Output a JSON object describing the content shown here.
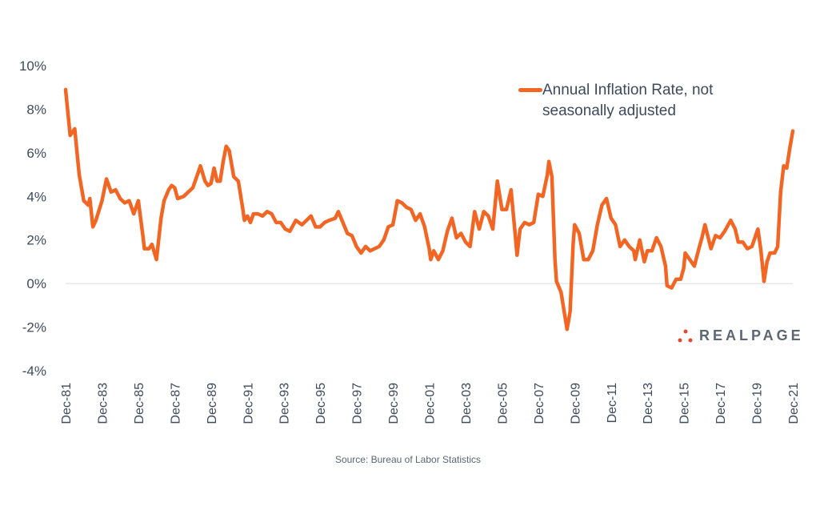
{
  "chart_data": {
    "type": "line",
    "title": "",
    "xlabel": "",
    "ylabel": "",
    "ylim": [
      -4,
      10
    ],
    "yticks": [
      "10%",
      "8%",
      "6%",
      "4%",
      "2%",
      "0%",
      "-2%",
      "-4%"
    ],
    "ytick_values": [
      10,
      8,
      6,
      4,
      2,
      0,
      -2,
      -4
    ],
    "xlim": [
      "1981-12",
      "2021-12"
    ],
    "xticks": [
      "Dec-81",
      "Dec-83",
      "Dec-85",
      "Dec-87",
      "Dec-89",
      "Dec-91",
      "Dec-93",
      "Dec-95",
      "Dec-97",
      "Dec-99",
      "Dec-01",
      "Dec-03",
      "Dec-05",
      "Dec-07",
      "Dec-09",
      "Dec-11",
      "Dec-13",
      "Dec-15",
      "Dec-17",
      "Dec-19",
      "Dec-21"
    ],
    "grid": "zero line only",
    "legend_position": "top-right",
    "series": [
      {
        "name": "Annual Inflation Rate, not seasonally adjusted",
        "color": "#f26522",
        "points": [
          [
            "1981-12",
            8.9
          ],
          [
            "1982-03",
            6.8
          ],
          [
            "1982-06",
            7.1
          ],
          [
            "1982-09",
            5.0
          ],
          [
            "1982-12",
            3.8
          ],
          [
            "1983-03",
            3.6
          ],
          [
            "1983-04",
            3.9
          ],
          [
            "1983-06",
            2.6
          ],
          [
            "1983-08",
            2.9
          ],
          [
            "1983-12",
            3.8
          ],
          [
            "1984-03",
            4.8
          ],
          [
            "1984-06",
            4.2
          ],
          [
            "1984-09",
            4.3
          ],
          [
            "1984-12",
            3.9
          ],
          [
            "1985-03",
            3.7
          ],
          [
            "1985-06",
            3.8
          ],
          [
            "1985-09",
            3.2
          ],
          [
            "1985-12",
            3.8
          ],
          [
            "1986-03",
            2.2
          ],
          [
            "1986-04",
            1.6
          ],
          [
            "1986-07",
            1.6
          ],
          [
            "1986-09",
            1.8
          ],
          [
            "1986-12",
            1.1
          ],
          [
            "1987-03",
            3.0
          ],
          [
            "1987-05",
            3.8
          ],
          [
            "1987-08",
            4.3
          ],
          [
            "1987-10",
            4.5
          ],
          [
            "1987-12",
            4.4
          ],
          [
            "1988-02",
            3.9
          ],
          [
            "1988-06",
            4.0
          ],
          [
            "1988-09",
            4.2
          ],
          [
            "1988-12",
            4.4
          ],
          [
            "1989-03",
            5.0
          ],
          [
            "1989-05",
            5.4
          ],
          [
            "1989-08",
            4.7
          ],
          [
            "1989-10",
            4.5
          ],
          [
            "1989-12",
            4.6
          ],
          [
            "1990-02",
            5.3
          ],
          [
            "1990-04",
            4.7
          ],
          [
            "1990-06",
            4.7
          ],
          [
            "1990-08",
            5.6
          ],
          [
            "1990-10",
            6.3
          ],
          [
            "1990-12",
            6.1
          ],
          [
            "1991-02",
            5.3
          ],
          [
            "1991-03",
            4.9
          ],
          [
            "1991-06",
            4.7
          ],
          [
            "1991-09",
            3.4
          ],
          [
            "1991-10",
            2.9
          ],
          [
            "1991-12",
            3.1
          ],
          [
            "1992-02",
            2.8
          ],
          [
            "1992-04",
            3.2
          ],
          [
            "1992-07",
            3.2
          ],
          [
            "1992-10",
            3.1
          ],
          [
            "1993-01",
            3.3
          ],
          [
            "1993-04",
            3.2
          ],
          [
            "1993-07",
            2.8
          ],
          [
            "1993-10",
            2.8
          ],
          [
            "1994-01",
            2.5
          ],
          [
            "1994-04",
            2.4
          ],
          [
            "1994-08",
            2.9
          ],
          [
            "1994-12",
            2.7
          ],
          [
            "1995-03",
            2.9
          ],
          [
            "1995-06",
            3.1
          ],
          [
            "1995-09",
            2.6
          ],
          [
            "1995-12",
            2.6
          ],
          [
            "1996-03",
            2.8
          ],
          [
            "1996-06",
            2.9
          ],
          [
            "1996-10",
            3.0
          ],
          [
            "1996-12",
            3.3
          ],
          [
            "1997-03",
            2.8
          ],
          [
            "1997-06",
            2.3
          ],
          [
            "1997-09",
            2.2
          ],
          [
            "1997-12",
            1.7
          ],
          [
            "1998-03",
            1.4
          ],
          [
            "1998-06",
            1.7
          ],
          [
            "1998-09",
            1.5
          ],
          [
            "1998-12",
            1.6
          ],
          [
            "1999-03",
            1.7
          ],
          [
            "1999-06",
            2.0
          ],
          [
            "1999-09",
            2.6
          ],
          [
            "1999-12",
            2.7
          ],
          [
            "2000-03",
            3.8
          ],
          [
            "2000-06",
            3.7
          ],
          [
            "2000-09",
            3.5
          ],
          [
            "2000-12",
            3.4
          ],
          [
            "2001-03",
            2.9
          ],
          [
            "2001-06",
            3.2
          ],
          [
            "2001-09",
            2.6
          ],
          [
            "2001-12",
            1.6
          ],
          [
            "2002-01",
            1.1
          ],
          [
            "2002-03",
            1.5
          ],
          [
            "2002-06",
            1.1
          ],
          [
            "2002-09",
            1.5
          ],
          [
            "2002-12",
            2.4
          ],
          [
            "2003-03",
            3.0
          ],
          [
            "2003-06",
            2.1
          ],
          [
            "2003-09",
            2.3
          ],
          [
            "2003-12",
            1.9
          ],
          [
            "2004-03",
            1.7
          ],
          [
            "2004-06",
            3.3
          ],
          [
            "2004-09",
            2.5
          ],
          [
            "2004-12",
            3.3
          ],
          [
            "2005-03",
            3.1
          ],
          [
            "2005-06",
            2.5
          ],
          [
            "2005-09",
            4.7
          ],
          [
            "2005-12",
            3.4
          ],
          [
            "2006-03",
            3.4
          ],
          [
            "2006-06",
            4.3
          ],
          [
            "2006-09",
            2.1
          ],
          [
            "2006-10",
            1.3
          ],
          [
            "2006-12",
            2.5
          ],
          [
            "2007-03",
            2.8
          ],
          [
            "2007-06",
            2.7
          ],
          [
            "2007-09",
            2.8
          ],
          [
            "2007-12",
            4.1
          ],
          [
            "2008-03",
            4.0
          ],
          [
            "2008-06",
            5.0
          ],
          [
            "2008-07",
            5.6
          ],
          [
            "2008-09",
            4.9
          ],
          [
            "2008-11",
            1.1
          ],
          [
            "2008-12",
            0.1
          ],
          [
            "2009-03",
            -0.4
          ],
          [
            "2009-07",
            -2.1
          ],
          [
            "2009-09",
            -1.3
          ],
          [
            "2009-11",
            1.8
          ],
          [
            "2009-12",
            2.7
          ],
          [
            "2010-03",
            2.3
          ],
          [
            "2010-06",
            1.1
          ],
          [
            "2010-09",
            1.1
          ],
          [
            "2010-12",
            1.5
          ],
          [
            "2011-03",
            2.7
          ],
          [
            "2011-06",
            3.6
          ],
          [
            "2011-09",
            3.9
          ],
          [
            "2011-12",
            3.0
          ],
          [
            "2012-03",
            2.7
          ],
          [
            "2012-06",
            1.7
          ],
          [
            "2012-09",
            2.0
          ],
          [
            "2012-12",
            1.7
          ],
          [
            "2013-03",
            1.5
          ],
          [
            "2013-04",
            1.1
          ],
          [
            "2013-07",
            2.0
          ],
          [
            "2013-10",
            1.0
          ],
          [
            "2013-12",
            1.5
          ],
          [
            "2014-03",
            1.5
          ],
          [
            "2014-06",
            2.1
          ],
          [
            "2014-09",
            1.7
          ],
          [
            "2014-12",
            0.8
          ],
          [
            "2015-01",
            -0.1
          ],
          [
            "2015-04",
            -0.2
          ],
          [
            "2015-07",
            0.2
          ],
          [
            "2015-10",
            0.2
          ],
          [
            "2015-12",
            0.7
          ],
          [
            "2016-01",
            1.4
          ],
          [
            "2016-04",
            1.1
          ],
          [
            "2016-07",
            0.8
          ],
          [
            "2016-10",
            1.6
          ],
          [
            "2016-12",
            2.1
          ],
          [
            "2017-02",
            2.7
          ],
          [
            "2017-06",
            1.6
          ],
          [
            "2017-09",
            2.2
          ],
          [
            "2017-12",
            2.1
          ],
          [
            "2018-03",
            2.4
          ],
          [
            "2018-07",
            2.9
          ],
          [
            "2018-10",
            2.5
          ],
          [
            "2018-12",
            1.9
          ],
          [
            "2019-03",
            1.9
          ],
          [
            "2019-06",
            1.6
          ],
          [
            "2019-09",
            1.7
          ],
          [
            "2019-12",
            2.3
          ],
          [
            "2020-01",
            2.5
          ],
          [
            "2020-03",
            1.5
          ],
          [
            "2020-05",
            0.1
          ],
          [
            "2020-07",
            1.0
          ],
          [
            "2020-09",
            1.4
          ],
          [
            "2020-12",
            1.4
          ],
          [
            "2021-02",
            1.7
          ],
          [
            "2021-04",
            4.2
          ],
          [
            "2021-06",
            5.4
          ],
          [
            "2021-08",
            5.3
          ],
          [
            "2021-10",
            6.2
          ],
          [
            "2021-12",
            7.0
          ]
        ]
      }
    ]
  },
  "legend": {
    "label": "Annual Inflation Rate, not seasonally adjusted"
  },
  "source": "Source: Bureau of Labor Statistics",
  "logo": {
    "text": "REALPAGE",
    "color": "#e04a2f"
  }
}
